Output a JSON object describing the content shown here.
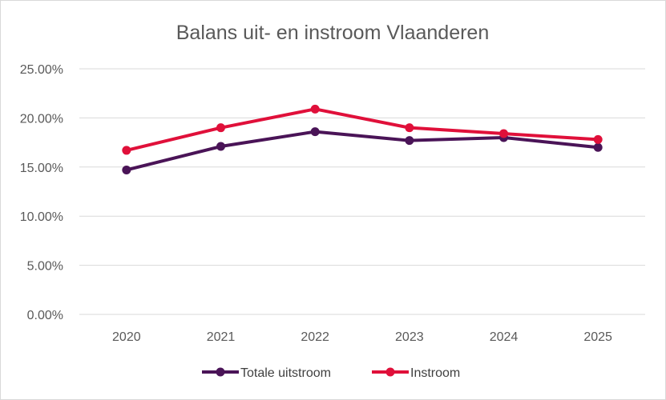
{
  "chart_data": {
    "type": "line",
    "title": "Balans uit- en instroom Vlaanderen",
    "categories": [
      "2020",
      "2021",
      "2022",
      "2023",
      "2024",
      "2025"
    ],
    "y_ticks": [
      "0.00%",
      "5.00%",
      "10.00%",
      "15.00%",
      "20.00%",
      "25.00%"
    ],
    "ylim": [
      0,
      25
    ],
    "grid": true,
    "legend_position": "bottom",
    "series": [
      {
        "name": "Totale uitstroom",
        "color": "#4a1457",
        "values": [
          14.7,
          17.1,
          18.6,
          17.7,
          18.0,
          17.0
        ]
      },
      {
        "name": "Instroom",
        "color": "#e0103a",
        "values": [
          16.7,
          19.0,
          20.9,
          19.0,
          18.4,
          17.8
        ]
      }
    ]
  }
}
